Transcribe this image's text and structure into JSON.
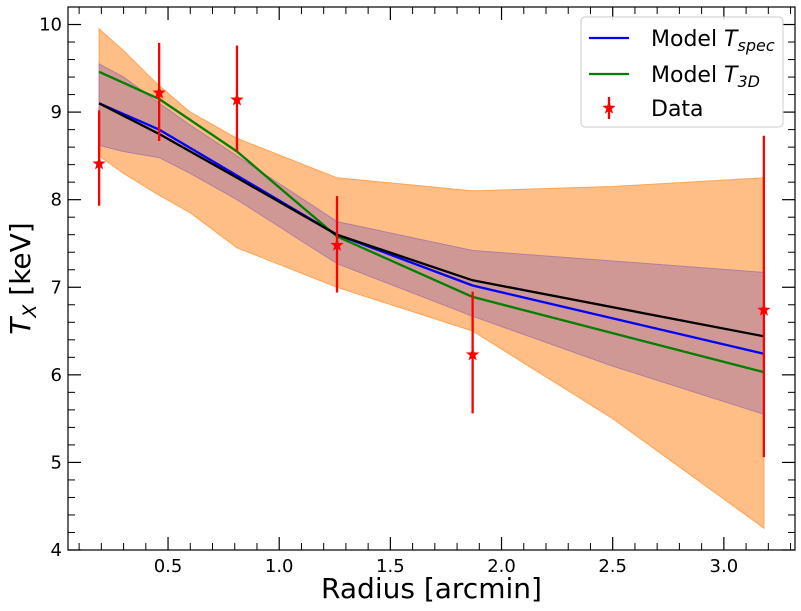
{
  "chart_data": {
    "type": "line",
    "xlabel": "Radius [arcmin]",
    "ylabel": "T_X [keV]",
    "ylabel_parts": {
      "main": "T",
      "sub": "X",
      "unit": " [keV]"
    },
    "xlim": [
      0.05,
      3.32
    ],
    "ylim": [
      4.0,
      10.2
    ],
    "xticks": [
      0.5,
      1.0,
      1.5,
      2.0,
      2.5,
      3.0
    ],
    "xtick_labels": [
      "0.5",
      "1.0",
      "1.5",
      "2.0",
      "2.5",
      "3.0"
    ],
    "yticks": [
      4,
      5,
      6,
      7,
      8,
      9,
      10
    ],
    "ytick_labels": [
      "4",
      "5",
      "6",
      "7",
      "8",
      "9",
      "10"
    ],
    "grid": false,
    "legend_position": "top-right",
    "bands": [
      {
        "color": "#ffa352",
        "opacity": 0.7,
        "x": [
          0.19,
          0.3,
          0.46,
          0.6,
          0.81,
          1.26,
          1.87,
          2.5,
          3.18
        ],
        "upper": [
          9.95,
          9.7,
          9.3,
          9.0,
          8.7,
          8.25,
          8.1,
          8.15,
          8.25
        ],
        "lower": [
          8.5,
          8.3,
          8.05,
          7.85,
          7.45,
          7.0,
          6.5,
          5.5,
          4.25
        ]
      },
      {
        "color": "#b07fa0",
        "opacity": 0.6,
        "x": [
          0.19,
          0.3,
          0.46,
          0.6,
          0.81,
          1.26,
          1.87,
          2.5,
          3.18
        ],
        "upper": [
          9.55,
          9.4,
          9.1,
          8.85,
          8.5,
          7.75,
          7.42,
          7.3,
          7.17
        ],
        "lower": [
          8.62,
          8.55,
          8.48,
          8.3,
          8.0,
          7.27,
          6.67,
          6.1,
          5.55
        ]
      }
    ],
    "series": [
      {
        "name": "Model T_spec",
        "legend_parts": {
          "main": "Model T",
          "sub": "spec"
        },
        "color": "#0000ff",
        "x": [
          0.19,
          0.46,
          1.26,
          1.87,
          3.18
        ],
        "y": [
          9.1,
          8.8,
          7.6,
          7.02,
          6.24
        ]
      },
      {
        "name": "Model T_3D",
        "legend_parts": {
          "main": "Model T",
          "sub": "3D"
        },
        "color": "#007f00",
        "x": [
          0.19,
          0.46,
          0.81,
          1.26,
          1.87,
          3.18
        ],
        "y": [
          9.46,
          9.15,
          8.55,
          7.58,
          6.89,
          6.03
        ]
      },
      {
        "name": "",
        "color": "#000000",
        "x": [
          0.19,
          0.46,
          0.81,
          1.26,
          1.87,
          3.18
        ],
        "y": [
          9.1,
          8.75,
          8.25,
          7.6,
          7.08,
          6.44
        ]
      }
    ],
    "data_points": {
      "name": "Data",
      "color": "#ff0000",
      "x": [
        0.19,
        0.46,
        0.81,
        1.26,
        1.87,
        3.18
      ],
      "y": [
        8.41,
        9.22,
        9.14,
        7.48,
        6.23,
        6.74
      ],
      "yerr_low": [
        7.93,
        8.67,
        8.55,
        6.94,
        5.56,
        5.06
      ],
      "yerr_high": [
        9.02,
        9.79,
        9.76,
        8.04,
        6.95,
        8.73
      ]
    }
  }
}
